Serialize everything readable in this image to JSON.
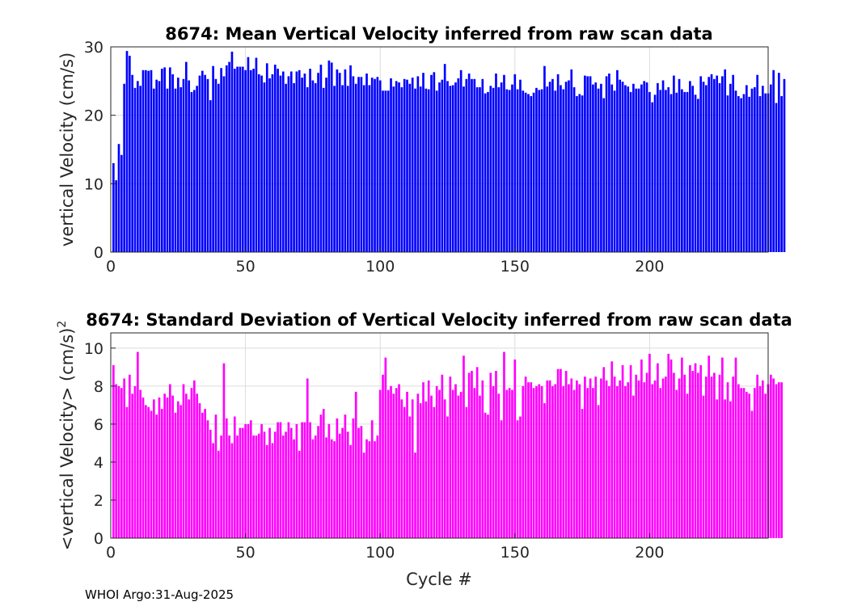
{
  "footer": "WHOI Argo:31-Aug-2025",
  "chart_data": [
    {
      "type": "bar",
      "title": "8674: Mean Vertical Velocity inferred from raw scan data",
      "xlabel": "",
      "ylabel": "vertical Velocity (cm/s)",
      "xlim": [
        0,
        244
      ],
      "ylim": [
        0,
        30
      ],
      "xticks": [
        0,
        50,
        100,
        150,
        200
      ],
      "yticks": [
        0,
        10,
        20,
        30
      ],
      "grid": true,
      "color": "#0000ff",
      "x_start": 1,
      "values": [
        13.0,
        10.5,
        15.8,
        14.2,
        24.6,
        29.4,
        28.7,
        25.9,
        24.0,
        25.0,
        24.3,
        26.6,
        26.6,
        26.5,
        26.6,
        23.9,
        25.2,
        25.0,
        26.8,
        27.0,
        23.9,
        27.0,
        26.0,
        23.9,
        25.5,
        24.1,
        25.3,
        27.8,
        25.1,
        23.4,
        23.7,
        24.3,
        25.8,
        26.5,
        25.9,
        25.3,
        22.2,
        27.2,
        25.3,
        24.6,
        26.9,
        25.7,
        27.3,
        27.8,
        29.3,
        26.8,
        27.1,
        27.1,
        27.1,
        26.6,
        28.5,
        26.6,
        26.8,
        28.4,
        26.0,
        25.8,
        24.8,
        27.6,
        25.4,
        26.0,
        27.4,
        26.8,
        25.8,
        26.4,
        24.6,
        25.7,
        26.4,
        24.7,
        26.4,
        26.6,
        25.5,
        26.1,
        24.1,
        26.8,
        25.1,
        24.7,
        26.2,
        27.4,
        24.0,
        25.5,
        28.0,
        27.7,
        24.3,
        26.7,
        26.2,
        24.4,
        26.7,
        24.3,
        27.3,
        25.7,
        24.6,
        25.6,
        25.6,
        24.4,
        26.1,
        24.4,
        25.5,
        25.3,
        25.6,
        25.1,
        23.6,
        23.6,
        23.6,
        25.4,
        24.2,
        25.0,
        24.8,
        24.1,
        25.3,
        25.2,
        24.6,
        25.5,
        23.9,
        25.7,
        24.2,
        26.2,
        23.9,
        23.8,
        25.9,
        26.3,
        23.6,
        24.8,
        25.2,
        27.5,
        25.0,
        24.3,
        24.4,
        24.8,
        25.4,
        26.6,
        24.2,
        25.3,
        26.1,
        25.3,
        25.3,
        24.1,
        24.1,
        25.3,
        23.2,
        23.4,
        24.3,
        24.0,
        26.1,
        24.1,
        24.8,
        25.9,
        23.8,
        23.7,
        24.5,
        26.0,
        23.8,
        25.2,
        23.6,
        23.3,
        23.1,
        22.8,
        23.3,
        24.0,
        23.7,
        23.8,
        27.2,
        24.2,
        24.9,
        25.3,
        23.6,
        26.0,
        24.4,
        23.8,
        24.9,
        25.1,
        26.7,
        24.1,
        22.8,
        23.1,
        22.9,
        25.8,
        25.7,
        25.7,
        24.5,
        24.8,
        23.9,
        24.6,
        22.5,
        25.7,
        26.1,
        24.5,
        23.6,
        26.6,
        25.2,
        24.9,
        24.4,
        24.2,
        23.4,
        24.6,
        23.9,
        23.9,
        24.5,
        25.0,
        24.8,
        23.4,
        21.9,
        23.0,
        24.7,
        23.7,
        25.1,
        23.7,
        24.1,
        23.1,
        25.8,
        23.3,
        25.3,
        23.8,
        23.4,
        23.4,
        25.0,
        24.3,
        23.0,
        22.4,
        25.7,
        24.9,
        24.4,
        25.6,
        26.0,
        25.3,
        25.8,
        24.7,
        25.7,
        26.7,
        22.9,
        24.6,
        25.9,
        23.6,
        22.8,
        22.5,
        23.1,
        24.4,
        22.7,
        23.9,
        24.1,
        25.9,
        22.8,
        24.3,
        23.2,
        23.2,
        24.5,
        26.6,
        21.8,
        26.2,
        22.8,
        25.3
      ]
    },
    {
      "type": "bar",
      "title": "8674: Standard Deviation of Vertical Velocity inferred from raw scan data",
      "xlabel": "Cycle #",
      "ylabel": "<vertical Velocity> (cm/s)",
      "ylabel_superscript": "2",
      "xlim": [
        0,
        244
      ],
      "ylim": [
        0,
        10.8
      ],
      "xticks": [
        0,
        50,
        100,
        150,
        200
      ],
      "yticks": [
        0,
        2,
        4,
        6,
        8,
        10
      ],
      "grid": true,
      "color": "#ff00ff",
      "x_start": 1,
      "values": [
        9.1,
        8.1,
        8.0,
        7.9,
        8.4,
        6.9,
        8.6,
        7.6,
        8.0,
        9.8,
        7.8,
        7.4,
        7.0,
        6.9,
        6.7,
        7.3,
        6.5,
        7.4,
        6.8,
        7.6,
        7.4,
        8.1,
        7.5,
        6.6,
        7.2,
        7.0,
        8.1,
        7.6,
        7.3,
        7.9,
        8.3,
        7.6,
        7.1,
        6.6,
        6.8,
        6.2,
        5.7,
        5.0,
        6.5,
        4.6,
        5.4,
        9.2,
        6.3,
        5.4,
        5.0,
        6.4,
        5.4,
        5.8,
        5.8,
        6.0,
        6.0,
        6.2,
        5.4,
        5.4,
        5.5,
        6.0,
        5.6,
        4.9,
        5.8,
        5.0,
        5.6,
        6.1,
        6.1,
        5.4,
        5.6,
        6.1,
        5.8,
        5.2,
        6.0,
        4.6,
        6.1,
        6.1,
        8.4,
        6.1,
        5.2,
        5.4,
        5.9,
        6.5,
        6.8,
        5.3,
        6.0,
        5.2,
        5.1,
        6.3,
        5.5,
        5.8,
        6.5,
        5.6,
        4.9,
        6.3,
        7.7,
        5.8,
        5.9,
        4.5,
        5.2,
        5.1,
        6.2,
        5.1,
        5.4,
        7.8,
        8.6,
        9.5,
        7.8,
        8.0,
        7.6,
        7.9,
        8.1,
        7.3,
        6.9,
        7.7,
        6.4,
        7.3,
        4.5,
        7.6,
        7.1,
        8.2,
        7.2,
        8.3,
        7.5,
        6.9,
        8.0,
        7.8,
        8.6,
        7.3,
        6.4,
        8.5,
        7.8,
        8.1,
        7.5,
        7.7,
        9.6,
        6.9,
        8.7,
        8.8,
        7.9,
        9.0,
        7.5,
        8.3,
        6.6,
        6.5,
        8.7,
        8.0,
        8.8,
        7.6,
        6.2,
        9.8,
        7.8,
        7.9,
        7.8,
        9.4,
        6.2,
        6.4,
        8.0,
        8.5,
        8.2,
        8.2,
        7.9,
        8.0,
        8.1,
        8.0,
        7.1,
        8.3,
        8.3,
        8.0,
        8.1,
        8.9,
        8.9,
        8.0,
        8.8,
        8.1,
        8.4,
        7.8,
        8.3,
        8.1,
        6.8,
        8.5,
        7.9,
        8.4,
        7.9,
        8.5,
        7.0,
        8.4,
        9.0,
        8.3,
        8.0,
        9.3,
        8.5,
        8.0,
        8.3,
        9.1,
        8.0,
        8.2,
        9.1,
        7.5,
        8.6,
        8.3,
        9.4,
        8.2,
        8.7,
        9.7,
        8.1,
        8.3,
        9.2,
        7.9,
        8.4,
        8.5,
        9.7,
        9.4,
        8.7,
        7.8,
        8.4,
        9.5,
        8.6,
        7.6,
        9.1,
        8.8,
        9.2,
        8.7,
        9.1,
        7.5,
        8.5,
        9.6,
        8.5,
        8.7,
        7.3,
        8.6,
        9.5,
        7.3,
        8.2,
        7.2,
        8.5,
        9.5,
        8.1,
        7.9,
        7.9,
        7.7,
        7.6,
        6.7,
        7.9,
        8.6,
        8.0,
        8.3,
        7.6,
        8.1,
        8.6,
        8.4,
        8.1,
        8.2,
        8.2
      ]
    }
  ]
}
